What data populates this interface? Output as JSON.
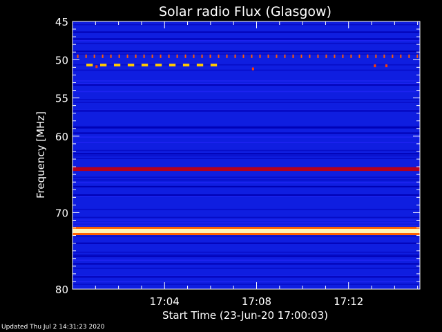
{
  "footer": {
    "updated": "Updated Thu Jul  2 14:31:23 2020"
  },
  "chart_data": {
    "type": "heatmap",
    "title": "Solar radio Flux (Glasgow)",
    "xlabel": "Start Time (23-Jun-20 17:00:03)",
    "ylabel": "Frequency [MHz]",
    "x_unit": "minutes after 17:00:03",
    "xlim": [
      0,
      15.1
    ],
    "ylim": [
      45,
      80
    ],
    "y_inverted": true,
    "x_ticks": [
      {
        "value": 4,
        "label": "17:04"
      },
      {
        "value": 8,
        "label": "17:08"
      },
      {
        "value": 12,
        "label": "17:12"
      }
    ],
    "y_ticks": [
      {
        "value": 45,
        "label": "45"
      },
      {
        "value": 50,
        "label": "50"
      },
      {
        "value": 55,
        "label": "55"
      },
      {
        "value": 60,
        "label": "60"
      },
      {
        "value": 70,
        "label": "70"
      },
      {
        "value": 80,
        "label": "80"
      }
    ],
    "background_color": "#0f1ee0",
    "band_color": "#2a2aff",
    "dark_color": "#0000b4",
    "bright_lines": [
      {
        "freq": 64.3,
        "color": "#b4001e",
        "width_mhz": 0.5
      },
      {
        "freq": 72.4,
        "color": "#fff5b4",
        "width_mhz": 0.55,
        "glow": "#ff6400"
      }
    ],
    "dark_lines": [
      46.4,
      47.3,
      48.9,
      53.3,
      56.7,
      58.9,
      59.6,
      62.3,
      66.6,
      67.7,
      74.0,
      75.7,
      76.7,
      78.4
    ],
    "pulse_row": {
      "freq": 49.6,
      "start": 0.2,
      "end": 15.0,
      "step": 0.36,
      "color": "#ff5a00"
    },
    "dash_row": {
      "freq": 50.7,
      "start": 0.6,
      "end": 6.1,
      "step": 0.6,
      "length": 0.28,
      "color": "#ffc800"
    },
    "speckles": [
      {
        "t": 1.0,
        "f": 50.9,
        "color": "#ff3c00"
      },
      {
        "t": 7.8,
        "f": 51.2,
        "color": "#ff3c00"
      },
      {
        "t": 13.1,
        "f": 50.8,
        "color": "#ff3c00"
      },
      {
        "t": 13.6,
        "f": 50.8,
        "color": "#ff3c00"
      }
    ]
  }
}
